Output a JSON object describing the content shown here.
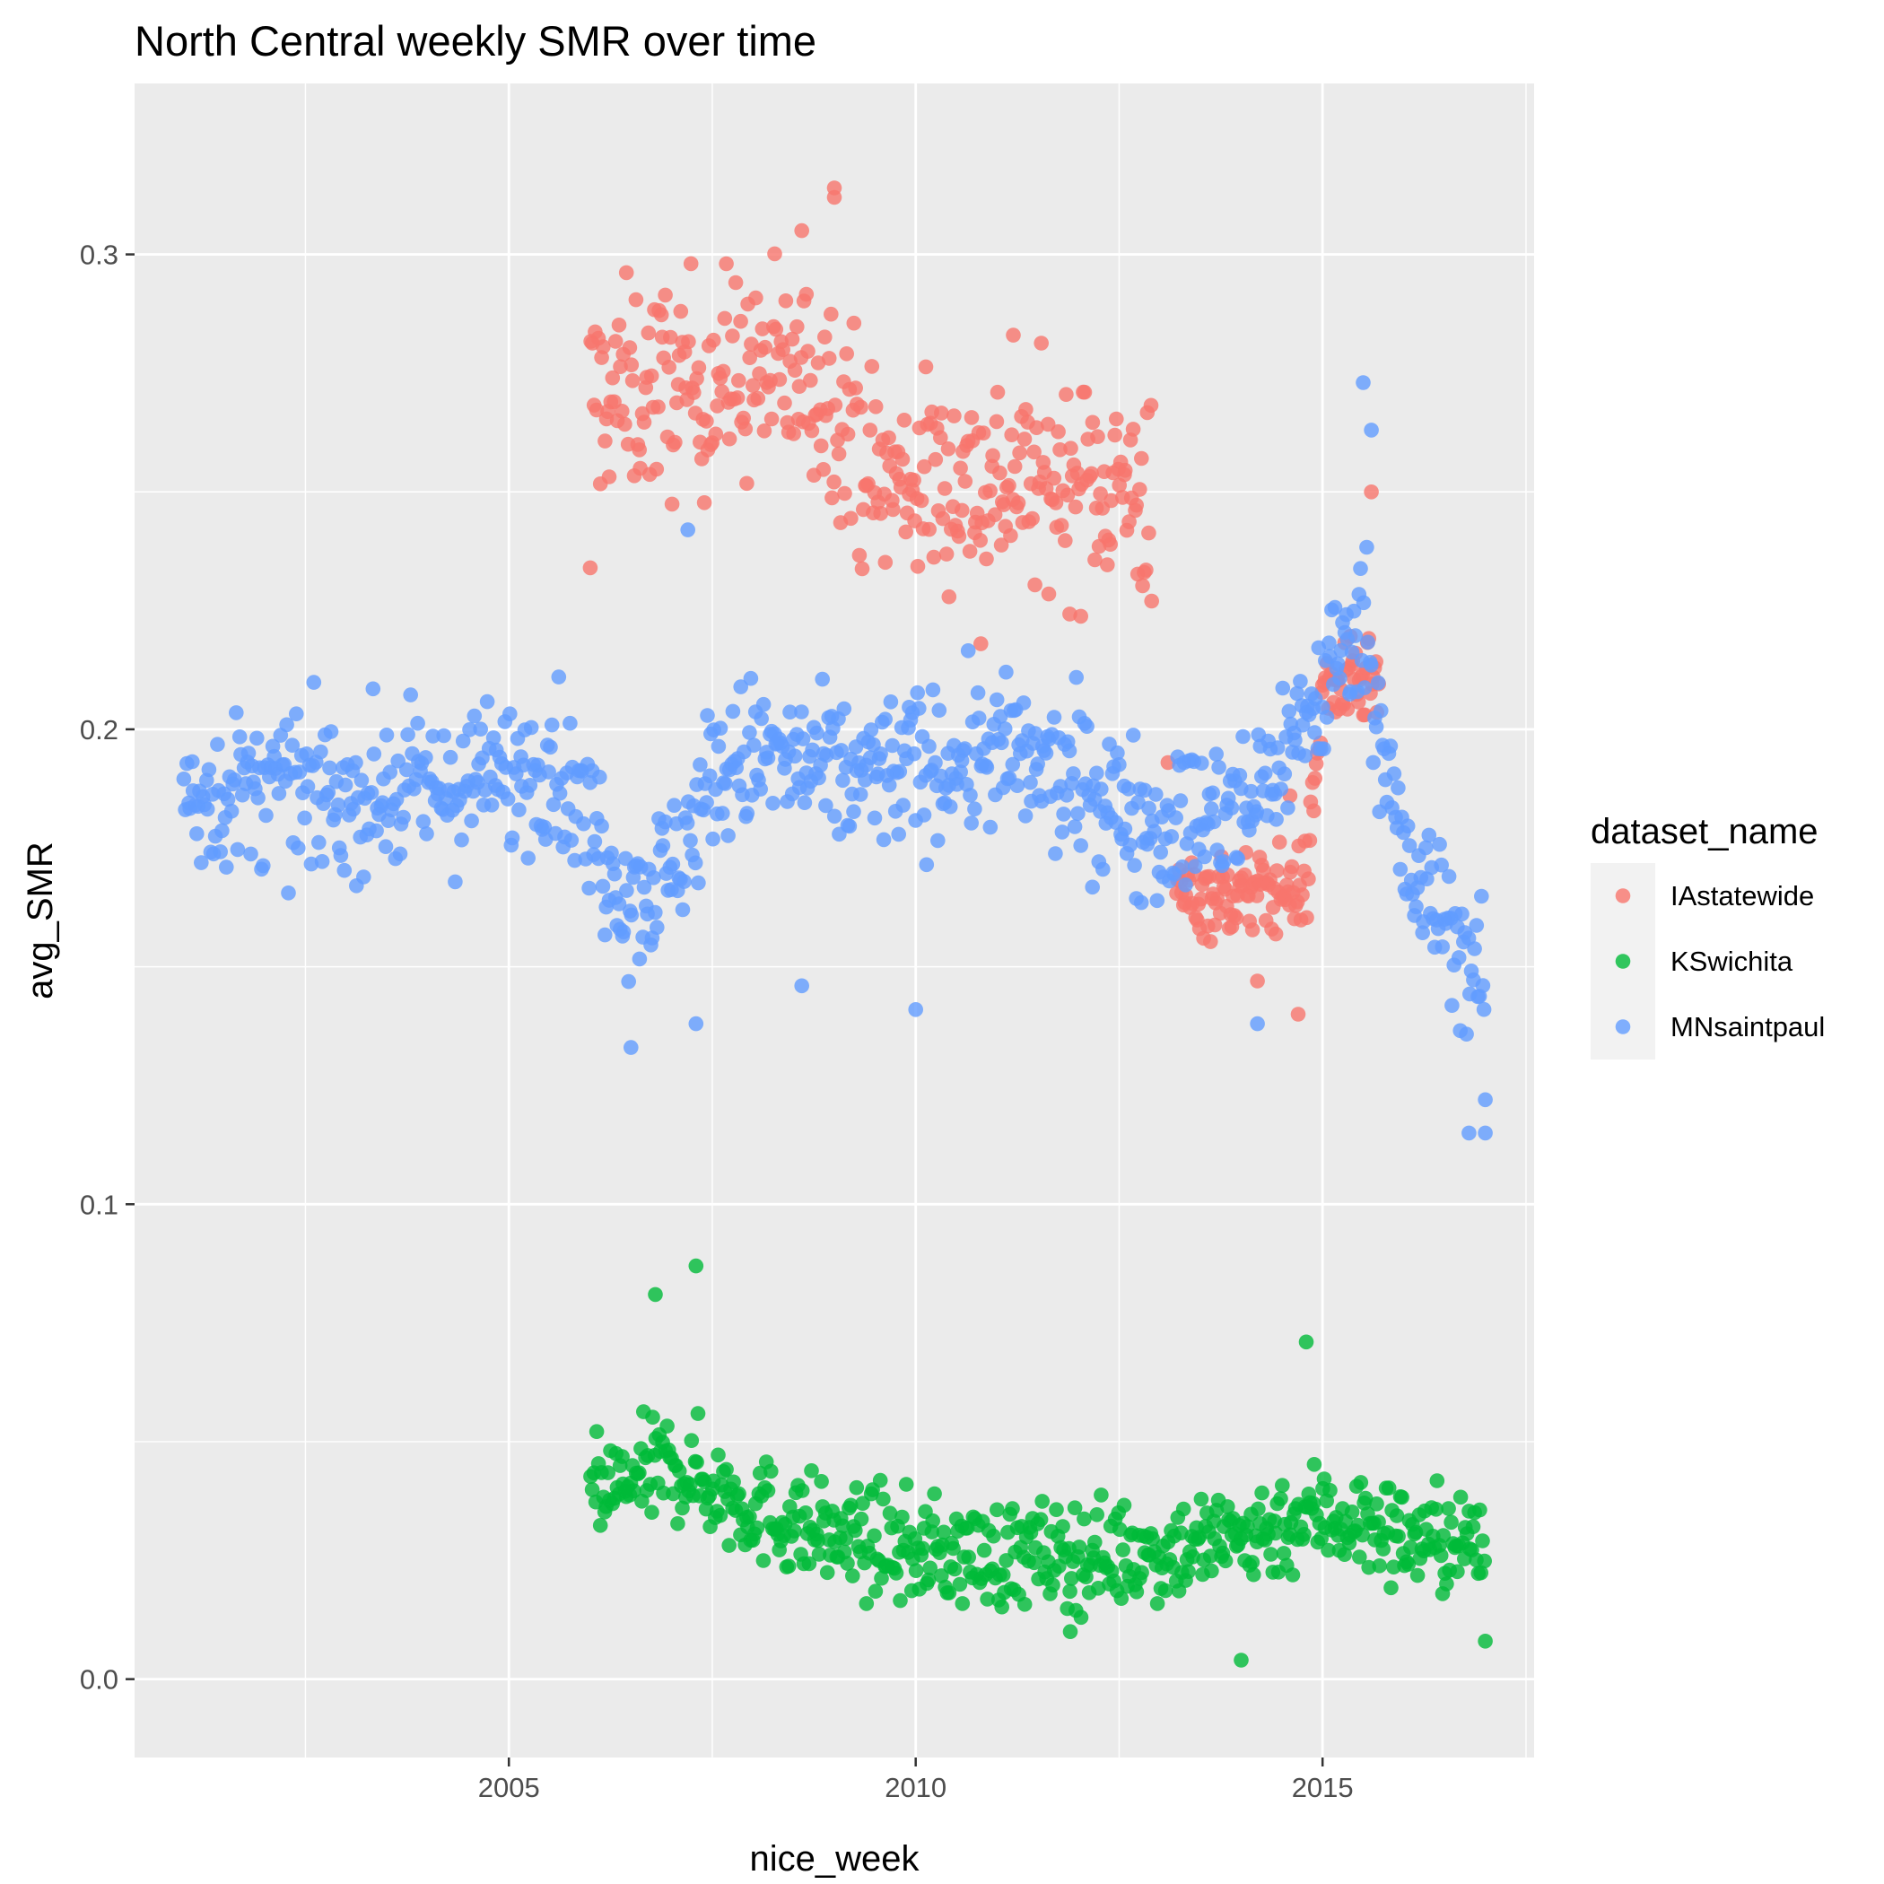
{
  "chart_data": {
    "type": "scatter",
    "title": "North Central weekly SMR over time",
    "xlabel": "nice_week",
    "ylabel": "avg_SMR",
    "xlim": [
      2000.4,
      2017.6
    ],
    "ylim": [
      -0.0165,
      0.336
    ],
    "x_ticks": [
      2005,
      2010,
      2015
    ],
    "y_ticks": [
      0.0,
      0.1,
      0.2,
      0.3
    ],
    "y_tick_labels": [
      "0.0",
      "0.1",
      "0.2",
      "0.3"
    ],
    "grid": true,
    "legend": {
      "title": "dataset_name",
      "position": "right"
    },
    "series": [
      {
        "name": "IAstatewide",
        "color": "#F8766D",
        "trend": [
          [
            2006.0,
            0.27
          ],
          [
            2007.0,
            0.272
          ],
          [
            2008.0,
            0.275
          ],
          [
            2009.0,
            0.272
          ],
          [
            2009.5,
            0.252
          ],
          [
            2010.5,
            0.253
          ],
          [
            2011.5,
            0.252
          ],
          [
            2012.5,
            0.252
          ],
          [
            2012.9,
            0.248
          ]
        ],
        "spread": 0.022,
        "n": 360,
        "extra": [
          [
            2006.0,
            0.234
          ],
          [
            2008.6,
            0.305
          ],
          [
            2009.0,
            0.314
          ],
          [
            2009.0,
            0.312
          ],
          [
            2012.9,
            0.227
          ],
          [
            2015.6,
            0.25
          ],
          [
            2011.2,
            0.283
          ],
          [
            2010.8,
            0.218
          ]
        ]
      },
      {
        "name": "IAstatewide",
        "color": "#F8766D",
        "trend": [
          [
            2013.2,
            0.165
          ],
          [
            2014.0,
            0.165
          ],
          [
            2014.8,
            0.167
          ],
          [
            2015.0,
            0.208
          ],
          [
            2015.7,
            0.21
          ]
        ],
        "spread": 0.009,
        "n": 150,
        "extra": [
          [
            2014.7,
            0.14
          ],
          [
            2014.2,
            0.147
          ],
          [
            2013.1,
            0.193
          ],
          [
            2014.6,
            0.186
          ]
        ],
        "hide_legend": true
      },
      {
        "name": "KSwichita",
        "color": "#00BA38",
        "trend": [
          [
            2006.0,
            0.038
          ],
          [
            2007.0,
            0.045
          ],
          [
            2008.0,
            0.036
          ],
          [
            2009.0,
            0.03
          ],
          [
            2010.0,
            0.027
          ],
          [
            2011.0,
            0.026
          ],
          [
            2012.0,
            0.026
          ],
          [
            2013.0,
            0.027
          ],
          [
            2014.0,
            0.03
          ],
          [
            2015.0,
            0.035
          ],
          [
            2016.0,
            0.03
          ],
          [
            2017.0,
            0.028
          ]
        ],
        "spread": 0.011,
        "n": 575,
        "extra": [
          [
            2007.3,
            0.087
          ],
          [
            2006.8,
            0.081
          ],
          [
            2014.0,
            0.004
          ],
          [
            2017.0,
            0.008
          ],
          [
            2011.9,
            0.01
          ],
          [
            2014.8,
            0.071
          ]
        ]
      },
      {
        "name": "MNsaintpaul",
        "color": "#619CFF",
        "trend": [
          [
            2001.0,
            0.186
          ],
          [
            2002.0,
            0.187
          ],
          [
            2003.0,
            0.186
          ],
          [
            2004.0,
            0.187
          ],
          [
            2005.0,
            0.19
          ],
          [
            2005.5,
            0.195
          ],
          [
            2006.0,
            0.18
          ],
          [
            2006.5,
            0.165
          ],
          [
            2007.0,
            0.17
          ],
          [
            2007.5,
            0.19
          ],
          [
            2008.0,
            0.195
          ],
          [
            2009.0,
            0.19
          ],
          [
            2010.0,
            0.192
          ],
          [
            2011.0,
            0.195
          ],
          [
            2012.0,
            0.188
          ],
          [
            2013.0,
            0.18
          ],
          [
            2014.0,
            0.182
          ],
          [
            2015.0,
            0.208
          ],
          [
            2015.5,
            0.225
          ],
          [
            2016.0,
            0.17
          ],
          [
            2016.5,
            0.16
          ],
          [
            2017.0,
            0.145
          ]
        ],
        "spread": 0.016,
        "n": 820,
        "extra": [
          [
            2015.5,
            0.273
          ],
          [
            2015.6,
            0.263
          ],
          [
            2016.8,
            0.115
          ],
          [
            2017.0,
            0.115
          ],
          [
            2017.0,
            0.122
          ],
          [
            2006.5,
            0.133
          ],
          [
            2007.3,
            0.138
          ],
          [
            2008.6,
            0.146
          ],
          [
            2010.0,
            0.141
          ],
          [
            2007.2,
            0.242
          ],
          [
            2014.2,
            0.138
          ]
        ]
      }
    ]
  }
}
